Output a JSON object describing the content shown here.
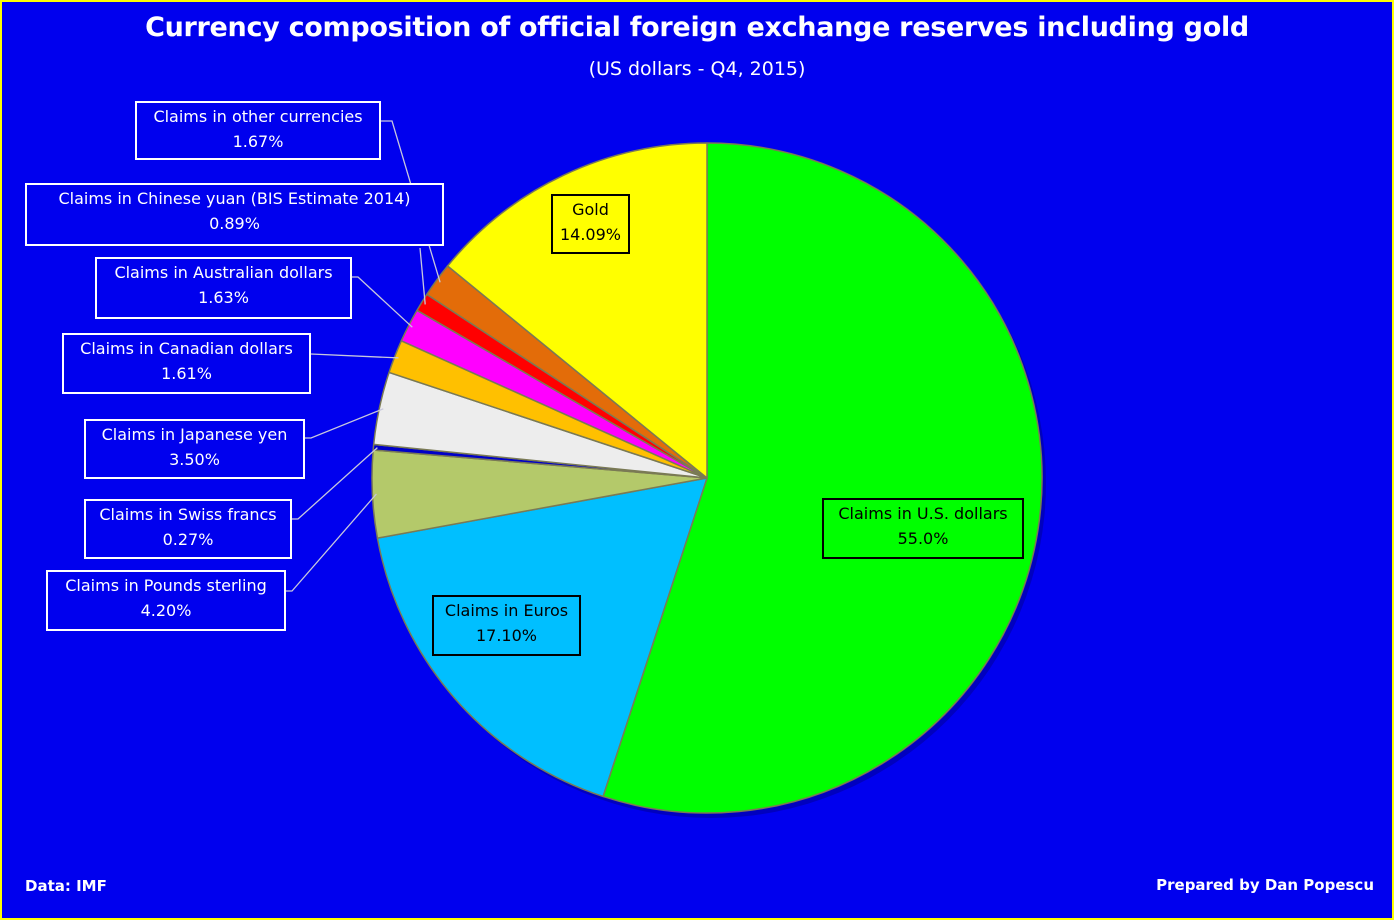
{
  "chart_data": {
    "type": "pie",
    "title": "Currency composition of official foreign exchange reserves including gold",
    "subtitle": "(US dollars - Q4, 2015)",
    "slices": [
      {
        "key": "usd",
        "label": "Claims in U.S. dollars",
        "value": 55.0,
        "display": "55.0%",
        "color": "#00ff00"
      },
      {
        "key": "eur",
        "label": "Claims in Euros",
        "value": 17.1,
        "display": "17.10%",
        "color": "#00bfff"
      },
      {
        "key": "gbp",
        "label": "Claims in Pounds sterling",
        "value": 4.2,
        "display": "4.20%",
        "color": "#b4c96a"
      },
      {
        "key": "chf",
        "label": "Claims in Swiss francs",
        "value": 0.27,
        "display": "0.27%",
        "color": "#0000c8"
      },
      {
        "key": "jpy",
        "label": "Claims in Japanese yen",
        "value": 3.5,
        "display": "3.50%",
        "color": "#ededed"
      },
      {
        "key": "cad",
        "label": "Claims in Canadian dollars",
        "value": 1.61,
        "display": "1.61%",
        "color": "#ffc000"
      },
      {
        "key": "aud",
        "label": "Claims in Australian dollars",
        "value": 1.63,
        "display": "1.63%",
        "color": "#ff00ff"
      },
      {
        "key": "cny",
        "label": "Claims in Chinese yuan (BIS Estimate 2014)",
        "value": 0.89,
        "display": "0.89%",
        "color": "#ff0000"
      },
      {
        "key": "oth",
        "label": "Claims in other currencies",
        "value": 1.67,
        "display": "1.67%",
        "color": "#e36c09"
      },
      {
        "key": "gold",
        "label": "Gold",
        "value": 14.09,
        "display": "14.09%",
        "color": "#ffff00"
      }
    ]
  },
  "footer": {
    "source": "Data: IMF",
    "credit": "Prepared by Dan Popescu"
  }
}
